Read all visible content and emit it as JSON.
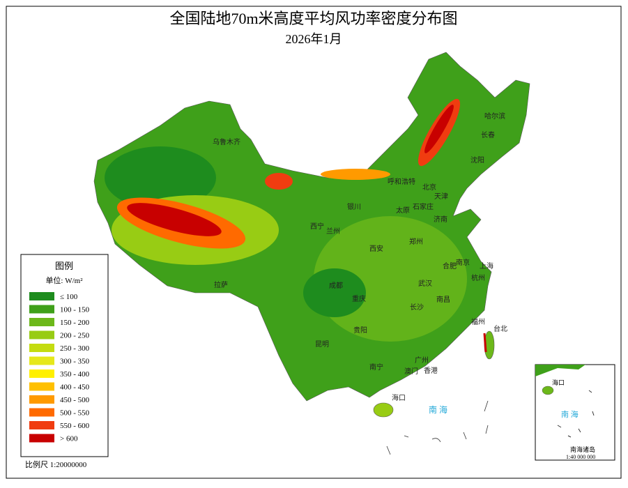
{
  "header": {
    "title": "全国陆地70m米高度平均风功率密度分布图",
    "subtitle": "2026年1月"
  },
  "legend": {
    "title": "图例",
    "unit": "单位: W/m²",
    "items": [
      {
        "label": "≤ 100",
        "color": "#1e8c1e"
      },
      {
        "label": "100 - 150",
        "color": "#3fa01a"
      },
      {
        "label": "150 - 200",
        "color": "#6cb81a"
      },
      {
        "label": "200 - 250",
        "color": "#98cc14"
      },
      {
        "label": "250 - 300",
        "color": "#c4dc10"
      },
      {
        "label": "300 - 350",
        "color": "#e6e81a"
      },
      {
        "label": "350 - 400",
        "color": "#fff000"
      },
      {
        "label": "400 - 450",
        "color": "#ffc000"
      },
      {
        "label": "450 - 500",
        "color": "#ff9a00"
      },
      {
        "label": "500 - 550",
        "color": "#ff6a00"
      },
      {
        "label": "550 - 600",
        "color": "#f03c10"
      },
      {
        "label": "> 600",
        "color": "#c80000"
      }
    ]
  },
  "scale": "比例尺 1:20000000",
  "cities": [
    "乌鲁木齐",
    "哈尔滨",
    "长春",
    "沈阳",
    "呼和浩特",
    "北京",
    "天津",
    "银川",
    "太原",
    "石家庄",
    "济南",
    "西宁",
    "兰州",
    "西安",
    "郑州",
    "南京",
    "上海",
    "合肥",
    "杭州",
    "拉萨",
    "成都",
    "重庆",
    "武汉",
    "南昌",
    "长沙",
    "福州",
    "台北",
    "贵阳",
    "昆明",
    "南宁",
    "广州",
    "香港",
    "澳门",
    "海口"
  ],
  "sea": "南  海",
  "inset": {
    "sea": "南 海",
    "city": "海口",
    "islands": "南海诸岛",
    "scale": "1:40 000 000"
  }
}
